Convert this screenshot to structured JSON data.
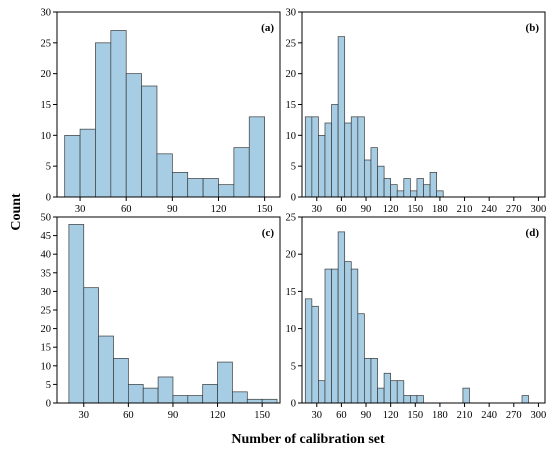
{
  "figure": {
    "xlabel": "Number of calibration set",
    "ylabel": "Count",
    "bar_color": "#a6cde3",
    "bar_edge": "#3a3a3a"
  },
  "chart_data": [
    {
      "type": "bar",
      "panel": "(a)",
      "bin_width": 10,
      "bin_starts": [
        20,
        30,
        40,
        50,
        60,
        70,
        80,
        90,
        100,
        110,
        120,
        130,
        140
      ],
      "values": [
        10,
        11,
        25,
        27,
        20,
        18,
        7,
        4,
        3,
        3,
        2,
        8,
        13
      ],
      "xlim": [
        15,
        160
      ],
      "ylim": [
        0,
        30
      ],
      "xticks": [
        30,
        60,
        90,
        120,
        150
      ],
      "yticks": [
        0,
        5,
        10,
        15,
        20,
        25,
        30
      ]
    },
    {
      "type": "bar",
      "panel": "(b)",
      "bin_width": 8,
      "bin_starts": [
        16,
        24,
        32,
        40,
        48,
        56,
        64,
        72,
        80,
        88,
        96,
        104,
        112,
        120,
        128,
        136,
        144,
        152,
        160,
        168,
        176,
        184
      ],
      "values": [
        13,
        13,
        10,
        12,
        15,
        26,
        12,
        13,
        13,
        6,
        8,
        5,
        3,
        2,
        1,
        3,
        1,
        3,
        2,
        4,
        1,
        0
      ],
      "xlim": [
        12,
        308
      ],
      "ylim": [
        0,
        30
      ],
      "xticks": [
        30,
        60,
        90,
        120,
        150,
        180,
        210,
        240,
        270,
        300
      ],
      "yticks": [
        0,
        5,
        10,
        15,
        20,
        25,
        30
      ]
    },
    {
      "type": "bar",
      "panel": "(c)",
      "bin_width": 10,
      "bin_starts": [
        20,
        30,
        40,
        50,
        60,
        70,
        80,
        90,
        100,
        110,
        120,
        130,
        140,
        150
      ],
      "values": [
        48,
        31,
        18,
        12,
        5,
        4,
        7,
        2,
        2,
        5,
        11,
        3,
        1,
        1
      ],
      "xlim": [
        12,
        162
      ],
      "ylim": [
        0,
        50
      ],
      "xticks": [
        30,
        60,
        90,
        120,
        150
      ],
      "yticks": [
        0,
        5,
        10,
        15,
        20,
        25,
        30,
        35,
        40,
        45,
        50
      ]
    },
    {
      "type": "bar",
      "panel": "(d)",
      "bin_width": 8,
      "bin_starts": [
        16,
        24,
        32,
        40,
        48,
        56,
        64,
        72,
        80,
        88,
        96,
        104,
        112,
        120,
        128,
        136,
        144,
        152,
        160,
        168,
        176,
        184,
        192,
        200,
        208,
        216,
        224,
        232,
        240,
        248,
        256,
        264,
        272,
        280
      ],
      "values": [
        14,
        13,
        3,
        18,
        18,
        23,
        19,
        18,
        12,
        6,
        6,
        2,
        4,
        3,
        3,
        1,
        1,
        1,
        0,
        0,
        0,
        0,
        0,
        0,
        2,
        0,
        0,
        0,
        0,
        0,
        0,
        0,
        0,
        1
      ],
      "xlim": [
        12,
        308
      ],
      "ylim": [
        0,
        25
      ],
      "xticks": [
        30,
        60,
        90,
        120,
        150,
        180,
        210,
        240,
        270,
        300
      ],
      "yticks": [
        0,
        5,
        10,
        15,
        20,
        25
      ]
    }
  ]
}
